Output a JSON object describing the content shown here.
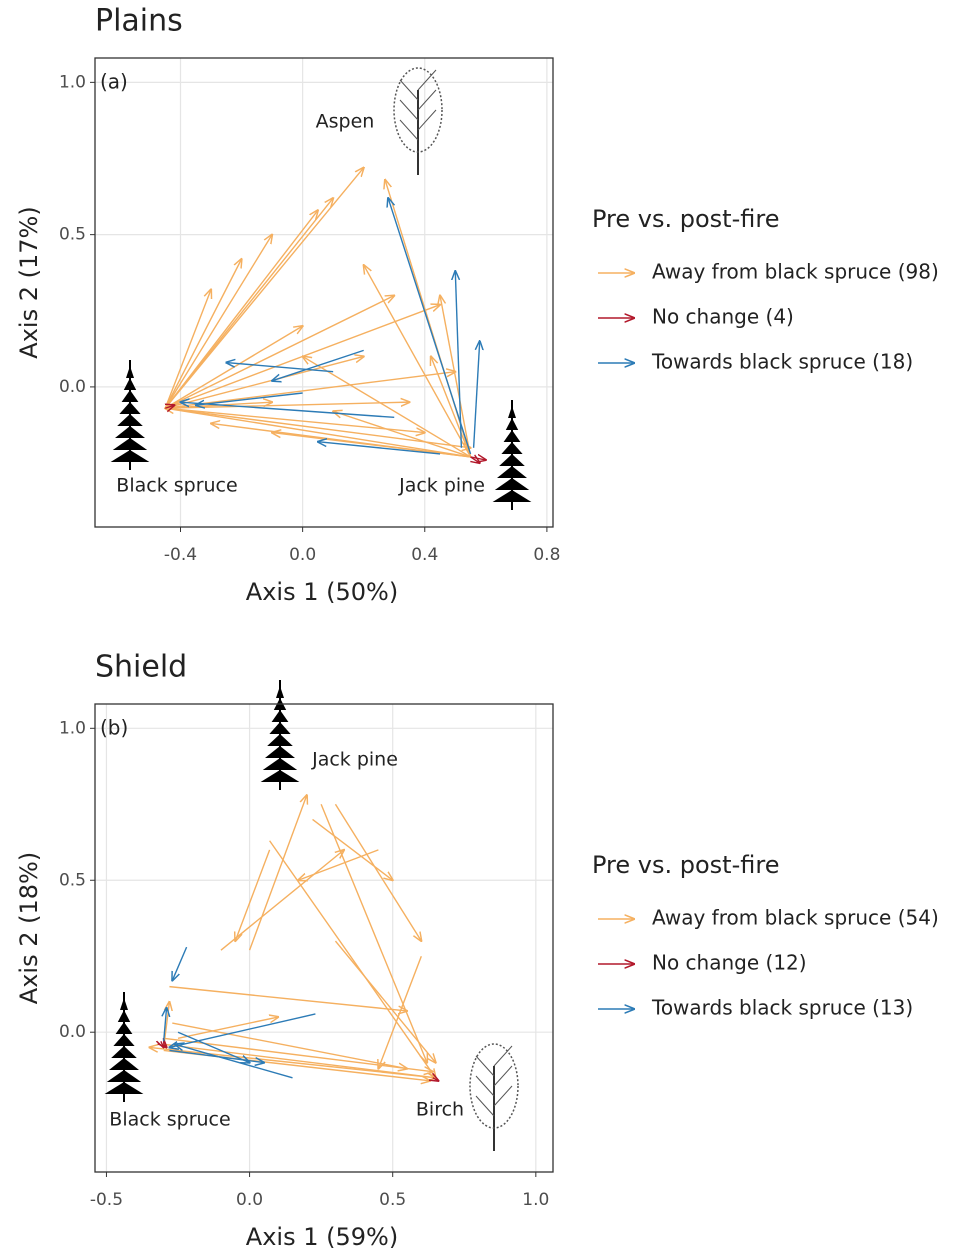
{
  "chart_data": [
    {
      "type": "arrow",
      "title": "Plains",
      "panel_label": "(a)",
      "xlabel": "Axis 1 (50%)",
      "ylabel": "Axis 2 (17%)",
      "xlim": [
        -0.68,
        0.82
      ],
      "ylim": [
        -0.46,
        1.08
      ],
      "xticks": [
        -0.4,
        {
          "value": 0,
          "label": "0.0"
        },
        0.4,
        0.8
      ],
      "yticks": [
        {
          "value": 0,
          "label": "0.0"
        },
        0.5,
        {
          "value": 1,
          "label": "1.0"
        }
      ],
      "grid": true,
      "legend": "right",
      "legend_title": "Pre vs. post-fire",
      "annotations": [
        "Aspen",
        "Black spruce",
        "Jack pine"
      ],
      "series": [
        {
          "name": "Away from black spruce (98)",
          "color": "#f5b060",
          "x0": [
            -0.45,
            -0.45,
            -0.45,
            -0.45,
            -0.45,
            -0.45,
            -0.45,
            -0.45,
            -0.45,
            -0.45,
            -0.45,
            -0.45,
            -0.45,
            -0.45,
            -0.45,
            0.55,
            0.55,
            0.55,
            0.55,
            0.55,
            0.55,
            0.55,
            0.55,
            0.55
          ],
          "y0": [
            -0.07,
            -0.07,
            -0.07,
            -0.07,
            -0.07,
            -0.07,
            -0.07,
            -0.07,
            -0.07,
            -0.07,
            -0.07,
            -0.07,
            -0.07,
            -0.07,
            -0.07,
            -0.23,
            -0.23,
            -0.23,
            -0.23,
            -0.23,
            -0.23,
            -0.23,
            -0.23,
            -0.23
          ],
          "x1": [
            0.2,
            0.1,
            0.05,
            -0.1,
            -0.2,
            -0.3,
            0.3,
            0.45,
            0.5,
            0.35,
            0.2,
            0.0,
            0.55,
            0.4,
            -0.1,
            -0.45,
            -0.3,
            0.27,
            0.0,
            0.2,
            0.42,
            -0.1,
            0.1,
            0.45
          ],
          "y1": [
            0.72,
            0.62,
            0.58,
            0.5,
            0.42,
            0.32,
            0.3,
            0.27,
            0.05,
            -0.05,
            0.1,
            0.2,
            -0.2,
            -0.15,
            -0.05,
            -0.07,
            -0.12,
            0.68,
            0.1,
            0.4,
            0.1,
            -0.15,
            -0.08,
            0.3
          ]
        },
        {
          "name": "No change (4)",
          "color": "#b2182b",
          "x0": [
            0.55,
            0.55,
            -0.45
          ],
          "y0": [
            -0.23,
            -0.23,
            -0.07
          ],
          "x1": [
            0.58,
            0.6,
            -0.42
          ],
          "y1": [
            -0.25,
            -0.24,
            -0.06
          ]
        },
        {
          "name": "Towards black spruce (18)",
          "color": "#2c7bb6",
          "x0": [
            0.55,
            0.52,
            0.56,
            0.1,
            0.3,
            0.45,
            0.0,
            0.2
          ],
          "y0": [
            -0.22,
            -0.2,
            -0.2,
            0.05,
            -0.1,
            -0.22,
            -0.02,
            0.12
          ],
          "x1": [
            0.28,
            0.5,
            0.58,
            -0.25,
            -0.4,
            0.05,
            -0.35,
            -0.1
          ],
          "y1": [
            0.62,
            0.38,
            0.15,
            0.08,
            -0.05,
            -0.18,
            -0.06,
            0.02
          ]
        }
      ]
    },
    {
      "type": "arrow",
      "title": "Shield",
      "panel_label": "(b)",
      "xlabel": "Axis 1 (59%)",
      "ylabel": "Axis 2 (18%)",
      "xlim": [
        -0.54,
        1.06
      ],
      "ylim": [
        -0.46,
        1.08
      ],
      "xticks": [
        -0.5,
        {
          "value": 0,
          "label": "0.0"
        },
        0.5,
        {
          "value": 1,
          "label": "1.0"
        }
      ],
      "yticks": [
        {
          "value": 0,
          "label": "0.0"
        },
        0.5,
        {
          "value": 1,
          "label": "1.0"
        }
      ],
      "grid": true,
      "legend": "right",
      "legend_title": "Pre vs. post-fire",
      "annotations": [
        "Jack pine",
        "Black spruce",
        "Birch"
      ],
      "series": [
        {
          "name": "Away from black spruce (54)",
          "color": "#f5b060",
          "x0": [
            0.25,
            0.22,
            0.3,
            0.07,
            0.07,
            -0.1,
            0.45,
            0.0,
            -0.28,
            -0.3,
            -0.3,
            -0.3,
            0.65,
            0.3,
            0.6,
            -0.3,
            -0.27,
            -0.25
          ],
          "y0": [
            0.75,
            0.7,
            0.75,
            0.63,
            0.6,
            0.27,
            0.6,
            0.27,
            0.15,
            -0.04,
            -0.06,
            -0.02,
            -0.15,
            0.3,
            0.25,
            -0.05,
            0.03,
            -0.02
          ],
          "x1": [
            0.62,
            0.5,
            0.6,
            0.65,
            -0.05,
            0.33,
            0.17,
            0.2,
            0.55,
            0.65,
            0.63,
            0.64,
            -0.35,
            0.65,
            0.45,
            -0.28,
            0.55,
            0.1
          ],
          "y1": [
            -0.1,
            0.5,
            0.3,
            -0.15,
            0.3,
            0.6,
            0.5,
            0.78,
            0.07,
            -0.15,
            -0.16,
            -0.13,
            -0.05,
            -0.1,
            -0.12,
            0.1,
            -0.12,
            0.05
          ]
        },
        {
          "name": "No change (12)",
          "color": "#b2182b",
          "x0": [
            -0.3,
            -0.31,
            0.64
          ],
          "y0": [
            -0.04,
            -0.03,
            -0.15
          ],
          "x1": [
            -0.29,
            -0.3,
            0.66
          ],
          "y1": [
            -0.05,
            -0.05,
            -0.16
          ]
        },
        {
          "name": "Towards black spruce (13)",
          "color": "#2c7bb6",
          "x0": [
            0.23,
            -0.22,
            -0.3,
            0.15,
            -0.28,
            -0.25
          ],
          "y0": [
            0.06,
            0.28,
            -0.03,
            -0.15,
            -0.06,
            0.0
          ],
          "x1": [
            -0.28,
            -0.27,
            -0.29,
            -0.26,
            0.05,
            0.0
          ],
          "y1": [
            -0.05,
            0.17,
            0.08,
            -0.04,
            -0.1,
            -0.1
          ]
        }
      ]
    }
  ]
}
